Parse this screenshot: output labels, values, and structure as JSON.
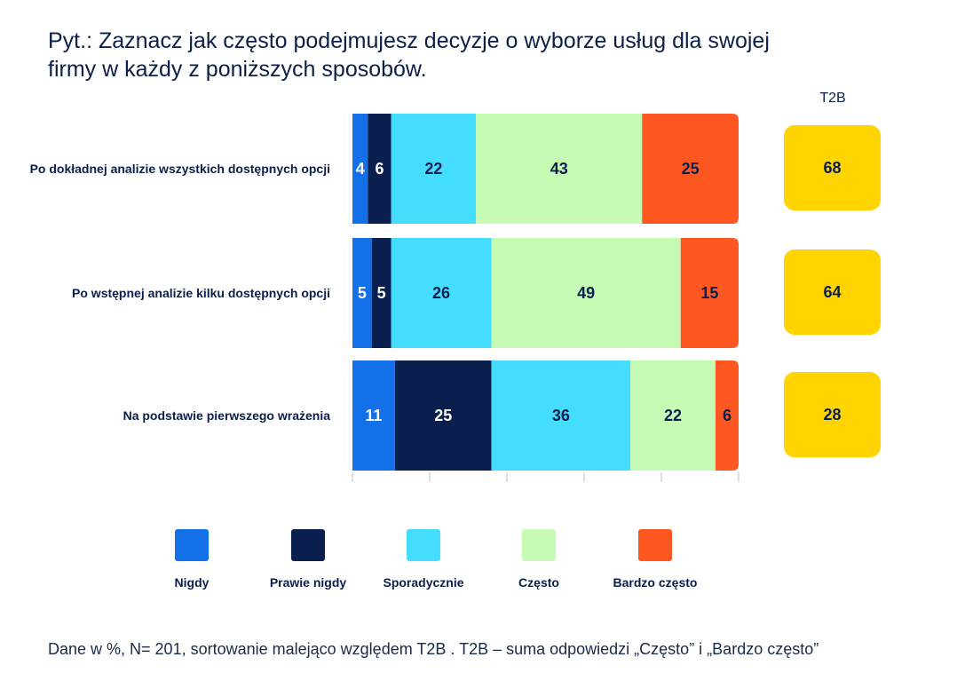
{
  "title": "Pyt.: Zaznacz jak często podejmujesz decyzje o wyborze usług dla swojej firmy w każdy z poniższych sposobów.",
  "footnote": "Dane w %, N= 201, sortowanie malejąco względem T2B . T2B – suma odpowiedzi „Często” i „Bardzo często”",
  "chart_data": {
    "type": "bar",
    "orientation": "horizontal",
    "stacked": true,
    "categories": [
      "Po dokładnej analizie wszystkich dostępnych opcji",
      "Po wstępnej analizie kilku dostępnych opcji",
      "Na podstawie pierwszego wrażenia"
    ],
    "series": [
      {
        "name": "Nigdy",
        "color": "#1370e8",
        "values": [
          4,
          5,
          11
        ]
      },
      {
        "name": "Prawie nigdy",
        "color": "#0b1f4f",
        "values": [
          6,
          5,
          25
        ]
      },
      {
        "name": "Sporadycznie",
        "color": "#44ddff",
        "values": [
          22,
          26,
          36
        ]
      },
      {
        "name": "Często",
        "color": "#c6fbb6",
        "values": [
          43,
          49,
          22
        ]
      },
      {
        "name": "Bardzo często",
        "color": "#ff5722",
        "values": [
          25,
          15,
          6
        ]
      }
    ],
    "t2b": {
      "label": "T2B",
      "color": "#ffd400",
      "values": [
        68,
        64,
        28
      ]
    },
    "xlim": [
      0,
      100
    ],
    "legend": "bottom",
    "grid": false
  }
}
